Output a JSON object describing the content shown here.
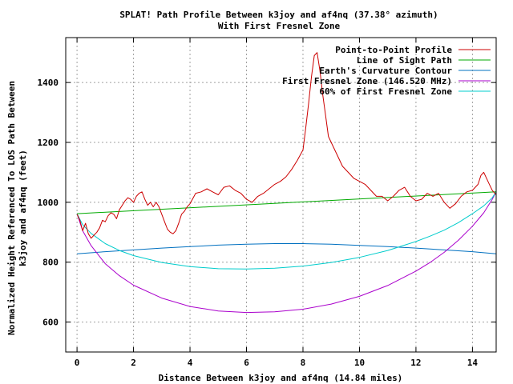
{
  "chart_data": {
    "type": "line",
    "title": "SPLAT! Path Profile Between k3joy and af4nq (37.38° azimuth)",
    "subtitle": "With First Fresnel Zone",
    "xlabel": "Distance Between k3joy and af4nq (14.84 miles)",
    "ylabel_line1": "Normalized Height Referenced To LOS Path Between",
    "ylabel_line2": "k3joy and af4nq (feet)",
    "xlim": [
      -0.4,
      14.84
    ],
    "ylim": [
      500,
      1550
    ],
    "x_ticks": [
      0,
      2,
      4,
      6,
      8,
      10,
      12,
      14
    ],
    "y_ticks": [
      600,
      800,
      1000,
      1200,
      1400
    ],
    "grid": true,
    "legend_position": "top-right",
    "series": [
      {
        "name": "Point-to-Point Profile",
        "color": "#cc0000",
        "x": [
          0,
          0.1,
          0.2,
          0.3,
          0.4,
          0.5,
          0.6,
          0.7,
          0.8,
          0.9,
          1.0,
          1.1,
          1.2,
          1.3,
          1.4,
          1.5,
          1.6,
          1.7,
          1.8,
          1.9,
          2.0,
          2.1,
          2.2,
          2.3,
          2.4,
          2.5,
          2.6,
          2.7,
          2.8,
          2.9,
          3.0,
          3.1,
          3.2,
          3.3,
          3.4,
          3.5,
          3.6,
          3.7,
          3.8,
          3.9,
          4.0,
          4.2,
          4.4,
          4.6,
          4.8,
          5.0,
          5.2,
          5.4,
          5.6,
          5.8,
          6.0,
          6.2,
          6.4,
          6.6,
          6.8,
          7.0,
          7.2,
          7.4,
          7.6,
          7.8,
          8.0,
          8.1,
          8.2,
          8.3,
          8.4,
          8.5,
          8.6,
          8.7,
          8.8,
          8.9,
          9.0,
          9.2,
          9.4,
          9.6,
          9.8,
          10.0,
          10.2,
          10.4,
          10.6,
          10.8,
          11.0,
          11.2,
          11.4,
          11.6,
          11.8,
          12.0,
          12.2,
          12.4,
          12.6,
          12.8,
          13.0,
          13.2,
          13.4,
          13.6,
          13.8,
          14.0,
          14.1,
          14.2,
          14.3,
          14.4,
          14.5,
          14.6,
          14.7,
          14.84
        ],
        "y": [
          960,
          940,
          905,
          930,
          895,
          880,
          890,
          900,
          915,
          940,
          935,
          955,
          965,
          960,
          945,
          975,
          990,
          1005,
          1015,
          1010,
          1000,
          1020,
          1030,
          1035,
          1010,
          990,
          1000,
          985,
          1000,
          985,
          960,
          935,
          910,
          900,
          895,
          905,
          930,
          960,
          970,
          985,
          995,
          1030,
          1035,
          1045,
          1035,
          1025,
          1050,
          1055,
          1040,
          1030,
          1010,
          1000,
          1020,
          1030,
          1045,
          1060,
          1070,
          1085,
          1110,
          1140,
          1175,
          1250,
          1330,
          1420,
          1490,
          1500,
          1440,
          1360,
          1290,
          1220,
          1200,
          1160,
          1120,
          1100,
          1080,
          1070,
          1060,
          1040,
          1020,
          1020,
          1005,
          1020,
          1040,
          1050,
          1020,
          1005,
          1010,
          1030,
          1020,
          1030,
          1000,
          980,
          995,
          1020,
          1035,
          1040,
          1050,
          1060,
          1090,
          1100,
          1080,
          1060,
          1040,
          1025
        ]
      },
      {
        "name": "Line of Sight Path",
        "color": "#00aa00",
        "x": [
          0,
          14.84
        ],
        "y": [
          962,
          1035
        ]
      },
      {
        "name": "Earth's Curvature Contour",
        "color": "#0070c0",
        "x": [
          0,
          1,
          2,
          3,
          4,
          5,
          6,
          7,
          8,
          9,
          10,
          11,
          12,
          13,
          14,
          14.84
        ],
        "y": [
          828,
          835,
          841,
          847,
          852,
          857,
          860,
          862,
          862,
          860,
          856,
          852,
          847,
          841,
          835,
          828
        ]
      },
      {
        "name": "First Fresnel Zone (146.520 MHz)",
        "color": "#aa00cc",
        "x": [
          0,
          0.2,
          0.5,
          1,
          1.5,
          2,
          3,
          4,
          5,
          6,
          7,
          8,
          9,
          10,
          11,
          12,
          12.5,
          13,
          13.5,
          14,
          14.4,
          14.7,
          14.84
        ],
        "y": [
          962,
          905,
          855,
          795,
          755,
          723,
          680,
          652,
          637,
          632,
          634,
          643,
          660,
          686,
          722,
          770,
          799,
          833,
          873,
          920,
          965,
          1010,
          1035
        ]
      },
      {
        "name": "60% of First Fresnel Zone",
        "color": "#00cccc",
        "x": [
          0,
          0.2,
          0.5,
          1,
          1.5,
          2,
          3,
          4,
          5,
          6,
          7,
          8,
          9,
          10,
          11,
          12,
          12.5,
          13,
          13.5,
          14,
          14.4,
          14.7,
          14.84
        ],
        "y": [
          962,
          925,
          896,
          862,
          839,
          822,
          799,
          785,
          778,
          777,
          780,
          787,
          799,
          816,
          839,
          869,
          887,
          907,
          932,
          962,
          988,
          1015,
          1035
        ]
      }
    ]
  }
}
